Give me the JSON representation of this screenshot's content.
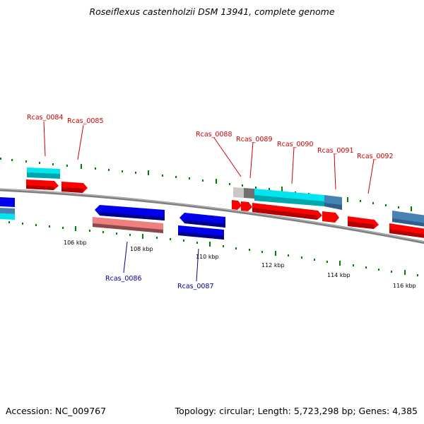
{
  "header": {
    "title": "Roseiflexus castenholzii DSM 13941, complete genome"
  },
  "footer": {
    "accession": "Accession: NC_009767",
    "summary": "Topology: circular; Length: 5,723,298 bp; Genes: 4,385"
  },
  "colors": {
    "forward_label": "#cc0000",
    "reverse_label": "#00008b",
    "forward_cds": "#ff0000",
    "reverse_cds": "#0000ee",
    "rna": "#00e5ee",
    "pseudo": "#f08080",
    "steelblue": "#4682b4",
    "tick": "#008000",
    "backbone": "#808080"
  },
  "scale_labels": [
    "106 kbp",
    "108 kbp",
    "110 kbp",
    "112 kbp",
    "114 kbp",
    "116 kbp"
  ],
  "gene_labels": [
    {
      "id": "Rcas_0084",
      "strand": "forward"
    },
    {
      "id": "Rcas_0085",
      "strand": "forward"
    },
    {
      "id": "Rcas_0086",
      "strand": "reverse"
    },
    {
      "id": "Rcas_0087",
      "strand": "reverse"
    },
    {
      "id": "Rcas_0088",
      "strand": "forward"
    },
    {
      "id": "Rcas_0089",
      "strand": "forward"
    },
    {
      "id": "Rcas_0090",
      "strand": "forward"
    },
    {
      "id": "Rcas_0091",
      "strand": "forward"
    },
    {
      "id": "Rcas_0092",
      "strand": "forward"
    }
  ]
}
